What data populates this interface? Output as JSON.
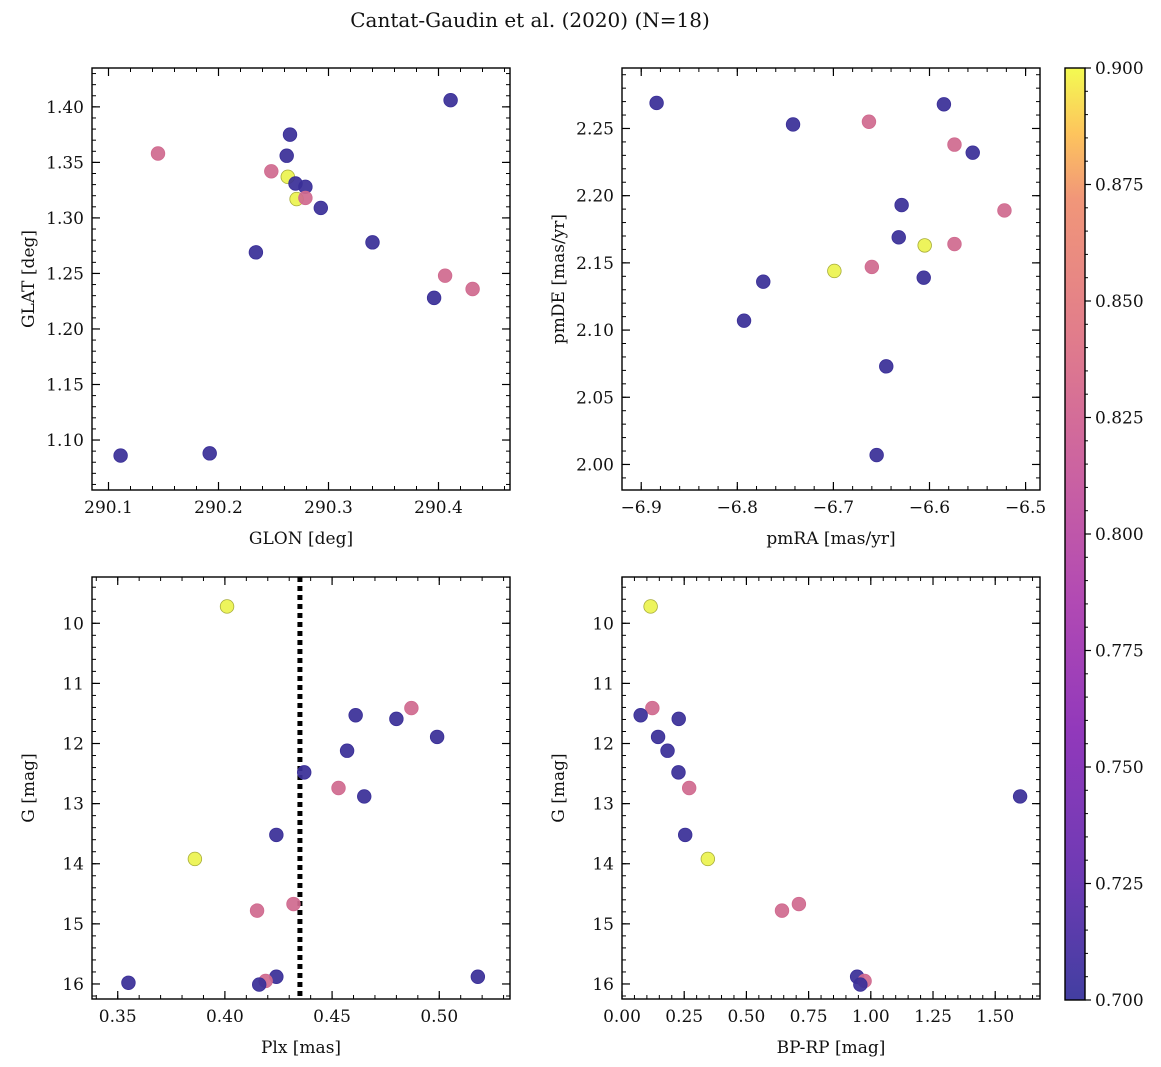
{
  "figure": {
    "title": "Cantat-Gaudin et al. (2020) (N=18)"
  },
  "colors": {
    "member_low": "#3a2f98",
    "member_mid": "#d06a8f",
    "member_high": "#ecf350",
    "reference_line": "#000000"
  },
  "chart_data": [
    {
      "type": "scatter",
      "id": "glon-glat",
      "xlabel": "GLON [deg]",
      "ylabel": "GLAT [deg]",
      "xlim": [
        290.085,
        290.465
      ],
      "ylim": [
        1.055,
        1.435
      ],
      "xticks": [
        290.1,
        290.2,
        290.3,
        290.4
      ],
      "xtick_labels": [
        "290.1",
        "290.2",
        "290.3",
        "290.4"
      ],
      "yticks": [
        1.1,
        1.15,
        1.2,
        1.25,
        1.3,
        1.35,
        1.4
      ],
      "ytick_labels": [
        "1.10",
        "1.15",
        "1.20",
        "1.25",
        "1.30",
        "1.35",
        "1.40"
      ],
      "points": [
        {
          "x": 290.111,
          "y": 1.086,
          "c": 0.7
        },
        {
          "x": 290.192,
          "y": 1.088,
          "c": 0.7
        },
        {
          "x": 290.145,
          "y": 1.358,
          "c": 0.8
        },
        {
          "x": 290.234,
          "y": 1.269,
          "c": 0.7
        },
        {
          "x": 290.248,
          "y": 1.342,
          "c": 0.8
        },
        {
          "x": 290.262,
          "y": 1.356,
          "c": 0.7
        },
        {
          "x": 290.265,
          "y": 1.375,
          "c": 0.7
        },
        {
          "x": 290.263,
          "y": 1.337,
          "c": 0.9
        },
        {
          "x": 290.27,
          "y": 1.331,
          "c": 0.7
        },
        {
          "x": 290.279,
          "y": 1.328,
          "c": 0.7
        },
        {
          "x": 290.271,
          "y": 1.317,
          "c": 0.9
        },
        {
          "x": 290.279,
          "y": 1.318,
          "c": 0.8
        },
        {
          "x": 290.293,
          "y": 1.309,
          "c": 0.7
        },
        {
          "x": 290.34,
          "y": 1.278,
          "c": 0.7
        },
        {
          "x": 290.396,
          "y": 1.228,
          "c": 0.7
        },
        {
          "x": 290.406,
          "y": 1.248,
          "c": 0.8
        },
        {
          "x": 290.411,
          "y": 1.406,
          "c": 0.7
        },
        {
          "x": 290.431,
          "y": 1.236,
          "c": 0.8
        }
      ]
    },
    {
      "type": "scatter",
      "id": "pmra-pmde",
      "xlabel": "pmRA [mas/yr]",
      "ylabel": "pmDE [mas/yr]",
      "xlim": [
        -6.92,
        -6.485
      ],
      "ylim": [
        1.981,
        2.295
      ],
      "xticks": [
        -6.9,
        -6.8,
        -6.7,
        -6.6,
        -6.5
      ],
      "xtick_labels": [
        "−6.9",
        "−6.8",
        "−6.7",
        "−6.6",
        "−6.5"
      ],
      "yticks": [
        2.0,
        2.05,
        2.1,
        2.15,
        2.2,
        2.25
      ],
      "ytick_labels": [
        "2.00",
        "2.05",
        "2.10",
        "2.15",
        "2.20",
        "2.25"
      ],
      "points": [
        {
          "x": -6.884,
          "y": 2.269,
          "c": 0.7
        },
        {
          "x": -6.742,
          "y": 2.253,
          "c": 0.7
        },
        {
          "x": -6.663,
          "y": 2.255,
          "c": 0.8
        },
        {
          "x": -6.585,
          "y": 2.268,
          "c": 0.7
        },
        {
          "x": -6.574,
          "y": 2.238,
          "c": 0.8
        },
        {
          "x": -6.555,
          "y": 2.232,
          "c": 0.7
        },
        {
          "x": -6.629,
          "y": 2.193,
          "c": 0.7
        },
        {
          "x": -6.522,
          "y": 2.189,
          "c": 0.8
        },
        {
          "x": -6.632,
          "y": 2.169,
          "c": 0.7
        },
        {
          "x": -6.605,
          "y": 2.163,
          "c": 0.9
        },
        {
          "x": -6.574,
          "y": 2.164,
          "c": 0.8
        },
        {
          "x": -6.66,
          "y": 2.147,
          "c": 0.8
        },
        {
          "x": -6.699,
          "y": 2.144,
          "c": 0.9
        },
        {
          "x": -6.606,
          "y": 2.139,
          "c": 0.7
        },
        {
          "x": -6.773,
          "y": 2.136,
          "c": 0.7
        },
        {
          "x": -6.793,
          "y": 2.107,
          "c": 0.7
        },
        {
          "x": -6.645,
          "y": 2.073,
          "c": 0.7
        },
        {
          "x": -6.655,
          "y": 2.007,
          "c": 0.7
        }
      ]
    },
    {
      "type": "scatter",
      "id": "plx-gmag",
      "xlabel": "Plx [mas]",
      "ylabel": "G [mag]",
      "xlim": [
        0.338,
        0.533
      ],
      "ylim": [
        16.25,
        9.23
      ],
      "y_inverted": true,
      "vline_x": 0.435,
      "xticks": [
        0.35,
        0.4,
        0.45,
        0.5
      ],
      "xtick_labels": [
        "0.35",
        "0.40",
        "0.45",
        "0.50"
      ],
      "yticks": [
        10,
        11,
        12,
        13,
        14,
        15,
        16
      ],
      "ytick_labels": [
        "10",
        "11",
        "12",
        "13",
        "14",
        "15",
        "16"
      ],
      "points": [
        {
          "x": 0.401,
          "y": 9.72,
          "c": 0.9
        },
        {
          "x": 0.487,
          "y": 11.41,
          "c": 0.8
        },
        {
          "x": 0.461,
          "y": 11.53,
          "c": 0.7
        },
        {
          "x": 0.48,
          "y": 11.59,
          "c": 0.7
        },
        {
          "x": 0.499,
          "y": 11.89,
          "c": 0.7
        },
        {
          "x": 0.457,
          "y": 12.12,
          "c": 0.7
        },
        {
          "x": 0.437,
          "y": 12.48,
          "c": 0.7
        },
        {
          "x": 0.453,
          "y": 12.74,
          "c": 0.8
        },
        {
          "x": 0.465,
          "y": 12.88,
          "c": 0.7
        },
        {
          "x": 0.424,
          "y": 13.52,
          "c": 0.7
        },
        {
          "x": 0.386,
          "y": 13.92,
          "c": 0.9
        },
        {
          "x": 0.432,
          "y": 14.67,
          "c": 0.8
        },
        {
          "x": 0.415,
          "y": 14.78,
          "c": 0.8
        },
        {
          "x": 0.424,
          "y": 15.88,
          "c": 0.7
        },
        {
          "x": 0.419,
          "y": 15.95,
          "c": 0.8
        },
        {
          "x": 0.416,
          "y": 16.01,
          "c": 0.7
        },
        {
          "x": 0.355,
          "y": 15.98,
          "c": 0.7
        },
        {
          "x": 0.518,
          "y": 15.88,
          "c": 0.7
        }
      ]
    },
    {
      "type": "scatter",
      "id": "bprp-gmag",
      "xlabel": "BP-RP [mag]",
      "ylabel": "G [mag]",
      "xlim": [
        0.0,
        1.68
      ],
      "ylim": [
        16.25,
        9.23
      ],
      "y_inverted": true,
      "xticks": [
        0.0,
        0.25,
        0.5,
        0.75,
        1.0,
        1.25,
        1.5
      ],
      "xtick_labels": [
        "0.00",
        "0.25",
        "0.50",
        "0.75",
        "1.00",
        "1.25",
        "1.50"
      ],
      "yticks": [
        10,
        11,
        12,
        13,
        14,
        15,
        16
      ],
      "ytick_labels": [
        "10",
        "11",
        "12",
        "13",
        "14",
        "15",
        "16"
      ],
      "points": [
        {
          "x": 0.115,
          "y": 9.72,
          "c": 0.9
        },
        {
          "x": 0.122,
          "y": 11.41,
          "c": 0.8
        },
        {
          "x": 0.075,
          "y": 11.53,
          "c": 0.7
        },
        {
          "x": 0.228,
          "y": 11.59,
          "c": 0.7
        },
        {
          "x": 0.145,
          "y": 11.89,
          "c": 0.7
        },
        {
          "x": 0.183,
          "y": 12.12,
          "c": 0.7
        },
        {
          "x": 0.227,
          "y": 12.48,
          "c": 0.7
        },
        {
          "x": 0.27,
          "y": 12.74,
          "c": 0.8
        },
        {
          "x": 1.6,
          "y": 12.88,
          "c": 0.7
        },
        {
          "x": 0.254,
          "y": 13.52,
          "c": 0.7
        },
        {
          "x": 0.345,
          "y": 13.92,
          "c": 0.9
        },
        {
          "x": 0.711,
          "y": 14.67,
          "c": 0.8
        },
        {
          "x": 0.643,
          "y": 14.78,
          "c": 0.8
        },
        {
          "x": 0.945,
          "y": 15.88,
          "c": 0.7
        },
        {
          "x": 0.975,
          "y": 15.95,
          "c": 0.8
        },
        {
          "x": 0.958,
          "y": 16.01,
          "c": 0.7
        }
      ]
    }
  ],
  "colorbar": {
    "min": 0.7,
    "max": 0.9,
    "ticks": [
      0.7,
      0.725,
      0.75,
      0.775,
      0.8,
      0.825,
      0.85,
      0.875,
      0.9
    ],
    "tick_labels": [
      "0.700",
      "0.725",
      "0.750",
      "0.775",
      "0.800",
      "0.825",
      "0.850",
      "0.875",
      "0.900"
    ]
  }
}
